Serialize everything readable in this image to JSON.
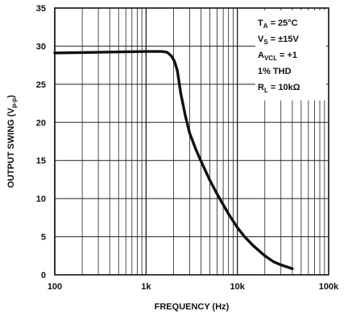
{
  "chart_data": {
    "type": "line",
    "title": "",
    "xlabel": "FREQUENCY (Hz)",
    "ylabel": "OUTPUT SWING (Vp-p)",
    "x_scale": "log",
    "xlim": [
      100,
      100000
    ],
    "ylim": [
      0,
      35
    ],
    "grid": true,
    "x_ticks": [
      100,
      1000,
      10000,
      100000
    ],
    "x_tick_labels": [
      "100",
      "1k",
      "10k",
      "100k"
    ],
    "y_ticks": [
      0,
      5,
      10,
      15,
      20,
      25,
      30,
      35
    ],
    "y_tick_labels": [
      "0",
      "5",
      "10",
      "15",
      "20",
      "25",
      "30",
      "35"
    ],
    "series": [
      {
        "x": [
          100,
          300,
          1000,
          1500,
          1700,
          1900,
          2050,
          2200,
          2400,
          2700,
          3000,
          3500,
          4000,
          5000,
          6000,
          7000,
          8000,
          10000,
          12000,
          15000,
          20000,
          25000,
          30000,
          40000
        ],
        "y": [
          29.1,
          29.2,
          29.3,
          29.3,
          29.2,
          28.7,
          28.0,
          26.8,
          23.8,
          20.8,
          18.6,
          16.5,
          14.9,
          12.4,
          10.6,
          9.2,
          8.0,
          6.2,
          5.0,
          3.8,
          2.5,
          1.7,
          1.3,
          0.8
        ]
      }
    ],
    "annotations": [
      {
        "main": "T",
        "sub": "A",
        "rest": " = 25°C"
      },
      {
        "main": "V",
        "sub": "S",
        "rest": " = ±15V"
      },
      {
        "main": "A",
        "sub": "VCL",
        "rest": " = +1"
      },
      {
        "main": "1% THD",
        "sub": "",
        "rest": ""
      },
      {
        "main": "R",
        "sub": "L",
        "rest": " = 10kΩ"
      }
    ],
    "colors": {
      "line": "#111111",
      "grid": "#222222",
      "background": "#ffffff"
    }
  }
}
